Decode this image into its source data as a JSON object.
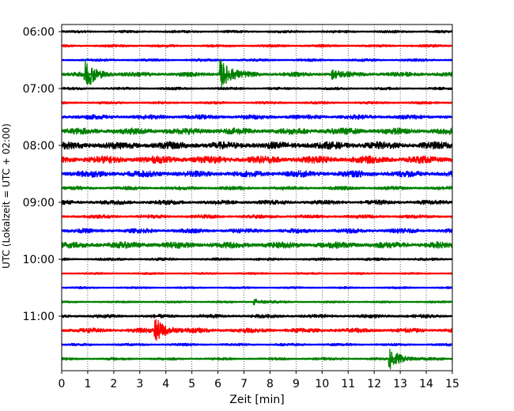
{
  "chart_data": {
    "type": "line",
    "title": "",
    "xlabel": "Zeit  [min]",
    "ylabel": "UTC (Lokalzeit = UTC + 02:00)",
    "xlim": [
      0,
      15
    ],
    "x_ticks": [
      "0",
      "1",
      "2",
      "3",
      "4",
      "5",
      "6",
      "7",
      "8",
      "9",
      "10",
      "11",
      "12",
      "13",
      "14",
      "15"
    ],
    "y_ticks": [
      "06:00",
      "07:00",
      "08:00",
      "09:00",
      "10:00",
      "11:00"
    ],
    "grid": "vertical dotted",
    "trace_colors": [
      "#000000",
      "#ff0000",
      "#0000ff",
      "#008000"
    ],
    "series": [
      {
        "start": "06:00",
        "amplitude": 0.15,
        "color": "#000000"
      },
      {
        "start": "06:15",
        "amplitude": 0.15,
        "color": "#ff0000"
      },
      {
        "start": "06:30",
        "amplitude": 0.15,
        "color": "#0000ff"
      },
      {
        "start": "06:45",
        "amplitude": 0.25,
        "color": "#008000",
        "events": [
          {
            "t": 0.9,
            "amplitude": 2.0
          },
          {
            "t": 6.1,
            "amplitude": 2.0
          },
          {
            "t": 10.4,
            "amplitude": 0.5
          }
        ]
      },
      {
        "start": "07:00",
        "amplitude": 0.15,
        "color": "#000000"
      },
      {
        "start": "07:15",
        "amplitude": 0.15,
        "color": "#ff0000"
      },
      {
        "start": "07:30",
        "amplitude": 0.25,
        "color": "#0000ff"
      },
      {
        "start": "07:45",
        "amplitude": 0.35,
        "color": "#008000"
      },
      {
        "start": "08:00",
        "amplitude": 0.4,
        "color": "#000000"
      },
      {
        "start": "08:15",
        "amplitude": 0.4,
        "color": "#ff0000"
      },
      {
        "start": "08:30",
        "amplitude": 0.35,
        "color": "#0000ff"
      },
      {
        "start": "08:45",
        "amplitude": 0.2,
        "color": "#008000"
      },
      {
        "start": "09:00",
        "amplitude": 0.25,
        "color": "#000000"
      },
      {
        "start": "09:15",
        "amplitude": 0.2,
        "color": "#ff0000"
      },
      {
        "start": "09:30",
        "amplitude": 0.25,
        "color": "#0000ff"
      },
      {
        "start": "09:45",
        "amplitude": 0.35,
        "color": "#008000"
      },
      {
        "start": "10:00",
        "amplitude": 0.15,
        "color": "#000000"
      },
      {
        "start": "10:15",
        "amplitude": 0.12,
        "color": "#ff0000"
      },
      {
        "start": "10:30",
        "amplitude": 0.12,
        "color": "#0000ff"
      },
      {
        "start": "10:45",
        "amplitude": 0.12,
        "color": "#008000",
        "events": [
          {
            "t": 7.4,
            "amplitude": 0.4
          }
        ]
      },
      {
        "start": "11:00",
        "amplitude": 0.2,
        "color": "#000000"
      },
      {
        "start": "11:15",
        "amplitude": 0.25,
        "color": "#ff0000",
        "events": [
          {
            "t": 3.6,
            "amplitude": 1.6
          }
        ]
      },
      {
        "start": "11:30",
        "amplitude": 0.15,
        "color": "#0000ff"
      },
      {
        "start": "11:45",
        "amplitude": 0.15,
        "color": "#008000",
        "events": [
          {
            "t": 12.6,
            "amplitude": 1.6
          }
        ]
      }
    ]
  }
}
